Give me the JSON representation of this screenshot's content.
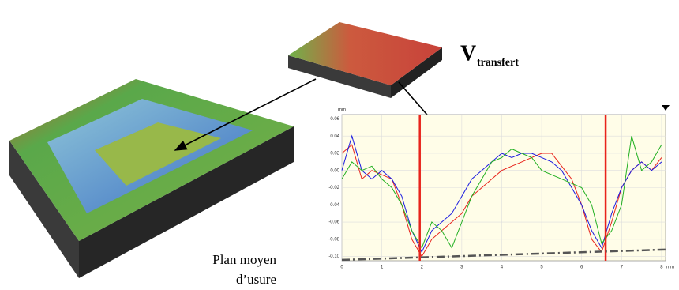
{
  "chart_data": {
    "type": "line",
    "annotations": {
      "volume": [
        "V",
        "transfert"
      ],
      "plane": [
        "Plan moyen",
        "d’usure"
      ]
    },
    "x_unit": "mm",
    "y_unit": "mm",
    "x": [
      0,
      0.25,
      0.5,
      0.75,
      1,
      1.25,
      1.5,
      1.75,
      2,
      2.25,
      2.5,
      2.75,
      3,
      3.25,
      3.5,
      3.75,
      4,
      4.25,
      4.5,
      4.75,
      5,
      5.25,
      5.5,
      5.75,
      6,
      6.25,
      6.5,
      6.75,
      7,
      7.25,
      7.5,
      7.75,
      8
    ],
    "series": [
      {
        "color": "#e8231b",
        "values": [
          0.02,
          0.03,
          -0.01,
          0.0,
          -0.005,
          -0.01,
          -0.04,
          -0.08,
          -0.1,
          -0.08,
          -0.07,
          -0.06,
          -0.05,
          -0.03,
          -0.02,
          -0.01,
          0.0,
          0.005,
          0.01,
          0.015,
          0.02,
          0.02,
          0.005,
          -0.01,
          -0.04,
          -0.08,
          -0.095,
          -0.06,
          -0.02,
          0.0,
          0.01,
          0.0,
          0.015
        ]
      },
      {
        "color": "#1c1ce0",
        "values": [
          0.0,
          0.04,
          0.0,
          -0.01,
          0.0,
          -0.01,
          -0.03,
          -0.07,
          -0.095,
          -0.07,
          -0.06,
          -0.05,
          -0.03,
          -0.01,
          0.0,
          0.01,
          0.02,
          0.015,
          0.02,
          0.02,
          0.015,
          0.01,
          0.0,
          -0.02,
          -0.04,
          -0.07,
          -0.09,
          -0.05,
          -0.02,
          0.0,
          0.01,
          0.0,
          0.01
        ]
      },
      {
        "color": "#22b022",
        "values": [
          -0.01,
          0.01,
          0.0,
          0.005,
          -0.01,
          -0.02,
          -0.04,
          -0.07,
          -0.09,
          -0.06,
          -0.07,
          -0.09,
          -0.06,
          -0.03,
          -0.01,
          0.01,
          0.015,
          0.025,
          0.02,
          0.015,
          0.0,
          -0.005,
          -0.01,
          -0.015,
          -0.02,
          -0.04,
          -0.085,
          -0.07,
          -0.04,
          0.04,
          0.0,
          0.01,
          0.03
        ]
      }
    ],
    "vertical_lines": [
      1.95,
      6.6
    ],
    "mean_plane": {
      "x": [
        0,
        8.1
      ],
      "y": [
        -0.104,
        -0.092
      ]
    },
    "xlim": [
      0,
      8.1
    ],
    "ylim": [
      -0.105,
      0.065
    ],
    "xticks": [
      0,
      1,
      2,
      3,
      4,
      5,
      6,
      7,
      8
    ],
    "yticks": [
      0.06,
      0.04,
      0.02,
      {
        "value": 0,
        "label": "0.00"
      },
      -0.02,
      -0.04,
      -0.06,
      -0.08,
      {
        "value": -0.1,
        "label": "-0.10"
      }
    ],
    "grid": true
  }
}
